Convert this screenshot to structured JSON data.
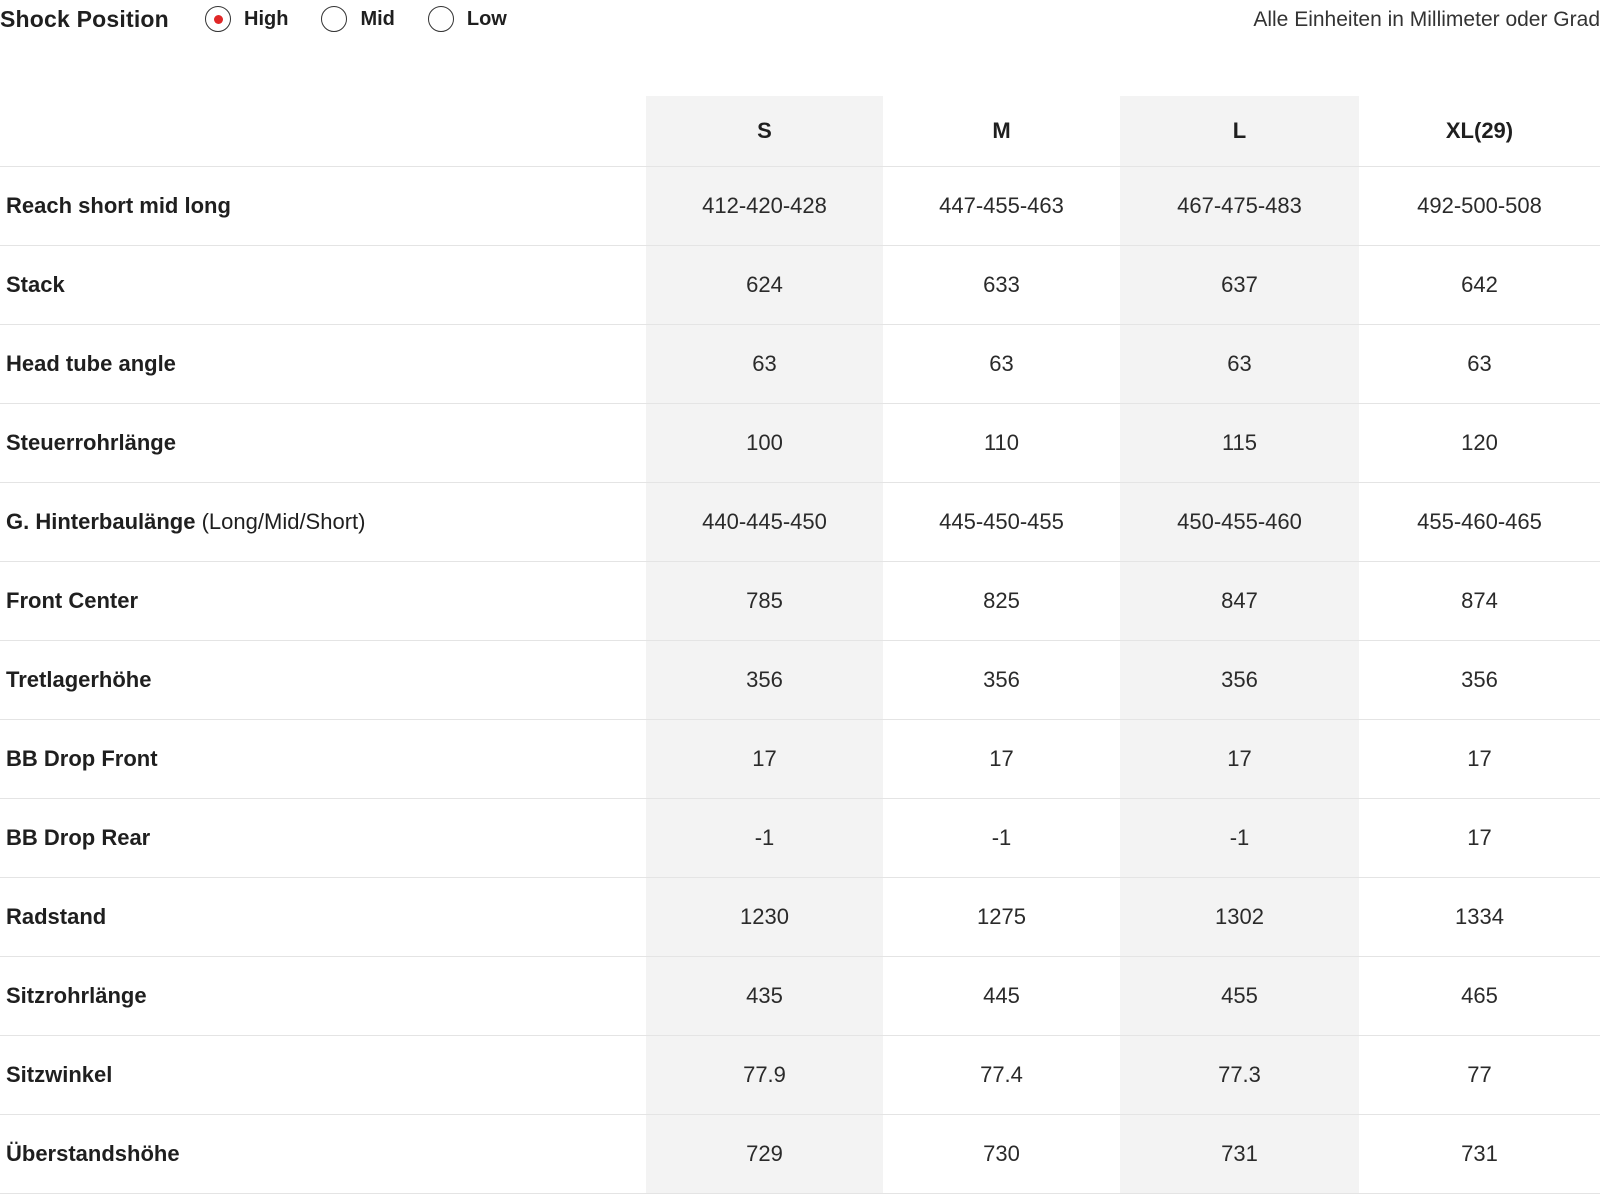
{
  "header": {
    "title": "Shock Position",
    "units_note": "Alle Einheiten in Millimeter oder Grad",
    "shock_options": [
      {
        "label": "High",
        "selected": true
      },
      {
        "label": "Mid",
        "selected": false
      },
      {
        "label": "Low",
        "selected": false
      }
    ],
    "accent_color": "#e02727"
  },
  "table": {
    "sizes": [
      "S",
      "M",
      "L",
      "XL(29)"
    ],
    "rows": [
      {
        "label": "Reach short mid long",
        "note": "",
        "values": [
          "412-420-428",
          "447-455-463",
          "467-475-483",
          "492-500-508"
        ]
      },
      {
        "label": "Stack",
        "note": "",
        "values": [
          "624",
          "633",
          "637",
          "642"
        ]
      },
      {
        "label": "Head tube angle",
        "note": "",
        "values": [
          "63",
          "63",
          "63",
          "63"
        ]
      },
      {
        "label": "Steuerrohrlänge",
        "note": "",
        "values": [
          "100",
          "110",
          "115",
          "120"
        ]
      },
      {
        "label": "G. Hinterbaulänge",
        "note": "(Long/Mid/Short)",
        "values": [
          "440-445-450",
          "445-450-455",
          "450-455-460",
          "455-460-465"
        ]
      },
      {
        "label": "Front Center",
        "note": "",
        "values": [
          "785",
          "825",
          "847",
          "874"
        ]
      },
      {
        "label": "Tretlagerhöhe",
        "note": "",
        "values": [
          "356",
          "356",
          "356",
          "356"
        ]
      },
      {
        "label": "BB Drop Front",
        "note": "",
        "values": [
          "17",
          "17",
          "17",
          "17"
        ]
      },
      {
        "label": "BB Drop Rear",
        "note": "",
        "values": [
          "-1",
          "-1",
          "-1",
          "17"
        ]
      },
      {
        "label": "Radstand",
        "note": "",
        "values": [
          "1230",
          "1275",
          "1302",
          "1334"
        ]
      },
      {
        "label": "Sitzrohrlänge",
        "note": "",
        "values": [
          "435",
          "445",
          "455",
          "465"
        ]
      },
      {
        "label": "Sitzwinkel",
        "note": "",
        "values": [
          "77.9",
          "77.4",
          "77.3",
          "77"
        ]
      },
      {
        "label": "Überstandshöhe",
        "note": "",
        "values": [
          "729",
          "730",
          "731",
          "731"
        ]
      }
    ]
  }
}
